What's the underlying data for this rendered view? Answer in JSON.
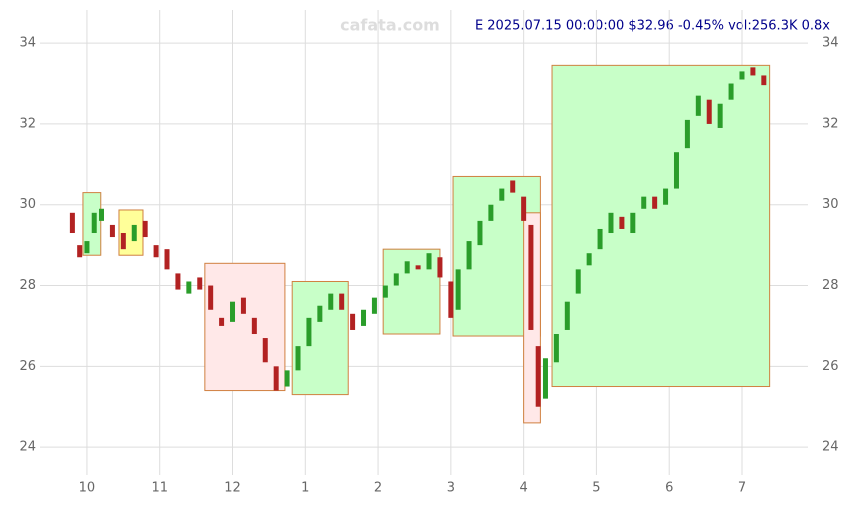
{
  "chart_data": {
    "type": "candlestick",
    "title": "E 2025.07.15 00:00:00 $32.96 -0.45% vol:256.3K 0.8x",
    "watermark": "cafata.com",
    "xlim": [
      9.355,
      19.907
    ],
    "xticks": [
      {
        "value": 10,
        "label": "10"
      },
      {
        "value": 11,
        "label": "11"
      },
      {
        "value": 12,
        "label": "12"
      },
      {
        "value": 13,
        "label": "1"
      },
      {
        "value": 14,
        "label": "2"
      },
      {
        "value": 15,
        "label": "3"
      },
      {
        "value": 16,
        "label": "4"
      },
      {
        "value": 17,
        "label": "5"
      },
      {
        "value": 18,
        "label": "6"
      },
      {
        "value": 19,
        "label": "7"
      }
    ],
    "ylim": [
      23.31,
      34.82
    ],
    "yticks": [
      24,
      26,
      28,
      30,
      32,
      34
    ],
    "grid": true,
    "up_color": "#2a9d2a",
    "down_color": "#b22222",
    "candles": {
      "x": [
        9.8,
        9.9,
        10.0,
        10.1,
        10.2,
        10.35,
        10.5,
        10.65,
        10.8,
        10.95,
        11.1,
        11.25,
        11.4,
        11.55,
        11.7,
        11.85,
        12.0,
        12.15,
        12.3,
        12.45,
        12.6,
        12.75,
        12.9,
        13.05,
        13.2,
        13.35,
        13.5,
        13.65,
        13.8,
        13.95,
        14.1,
        14.25,
        14.4,
        14.55,
        14.7,
        14.85,
        15.0,
        15.1,
        15.25,
        15.4,
        15.55,
        15.7,
        15.85,
        16.0,
        16.1,
        16.2,
        16.3,
        16.45,
        16.6,
        16.75,
        16.9,
        17.05,
        17.2,
        17.35,
        17.5,
        17.65,
        17.8,
        17.95,
        18.1,
        18.25,
        18.4,
        18.55,
        18.7,
        18.85,
        19.0,
        19.15,
        19.3
      ],
      "open": [
        29.8,
        29.0,
        28.8,
        29.3,
        29.6,
        29.5,
        29.3,
        29.1,
        29.6,
        29.0,
        28.9,
        28.3,
        27.8,
        28.2,
        28.0,
        27.2,
        27.1,
        27.7,
        27.2,
        26.7,
        26.0,
        25.5,
        25.9,
        26.5,
        27.1,
        27.4,
        27.8,
        27.3,
        27.0,
        27.3,
        27.7,
        28.0,
        28.3,
        28.5,
        28.4,
        28.7,
        28.1,
        27.4,
        28.4,
        29.0,
        29.6,
        30.1,
        30.6,
        30.2,
        29.5,
        26.5,
        25.2,
        26.1,
        26.9,
        27.8,
        28.5,
        28.9,
        29.3,
        29.7,
        29.3,
        29.9,
        30.2,
        30.0,
        30.4,
        31.4,
        32.2,
        32.6,
        31.9,
        32.6,
        33.1,
        33.4,
        33.2
      ],
      "close": [
        29.3,
        28.7,
        29.1,
        29.8,
        29.9,
        29.2,
        28.9,
        29.5,
        29.2,
        28.7,
        28.4,
        27.9,
        28.1,
        27.9,
        27.4,
        27.0,
        27.6,
        27.3,
        26.8,
        26.1,
        25.4,
        25.9,
        26.5,
        27.2,
        27.5,
        27.8,
        27.4,
        26.9,
        27.4,
        27.7,
        28.0,
        28.3,
        28.6,
        28.4,
        28.8,
        28.2,
        27.2,
        28.4,
        29.1,
        29.6,
        30.0,
        30.4,
        30.3,
        29.6,
        26.9,
        25.0,
        26.2,
        26.8,
        27.6,
        28.4,
        28.8,
        29.4,
        29.8,
        29.4,
        29.8,
        30.2,
        29.9,
        30.4,
        31.3,
        32.1,
        32.7,
        32.0,
        32.5,
        33.0,
        33.3,
        33.2,
        32.96
      ]
    },
    "boxes": [
      {
        "x0": 9.945,
        "x1": 10.19,
        "low": 28.75,
        "high": 30.3,
        "color": "#c8ffc8"
      },
      {
        "x0": 10.44,
        "x1": 10.77,
        "low": 28.75,
        "high": 29.87,
        "color": "#ffff99"
      },
      {
        "x0": 11.62,
        "x1": 12.72,
        "low": 25.4,
        "high": 28.55,
        "color": "#ffe8e8"
      },
      {
        "x0": 12.82,
        "x1": 13.59,
        "low": 25.3,
        "high": 28.1,
        "color": "#c8ffc8"
      },
      {
        "x0": 14.07,
        "x1": 14.85,
        "low": 26.8,
        "high": 28.9,
        "color": "#c8ffc8"
      },
      {
        "x0": 15.03,
        "x1": 16.23,
        "low": 26.75,
        "high": 30.7,
        "color": "#c8ffc8"
      },
      {
        "x0": 16.0,
        "x1": 16.23,
        "low": 24.6,
        "high": 29.8,
        "color": "#ffe8e8"
      },
      {
        "x0": 16.39,
        "x1": 19.38,
        "low": 25.5,
        "high": 33.45,
        "color": "#c8ffc8"
      }
    ]
  }
}
